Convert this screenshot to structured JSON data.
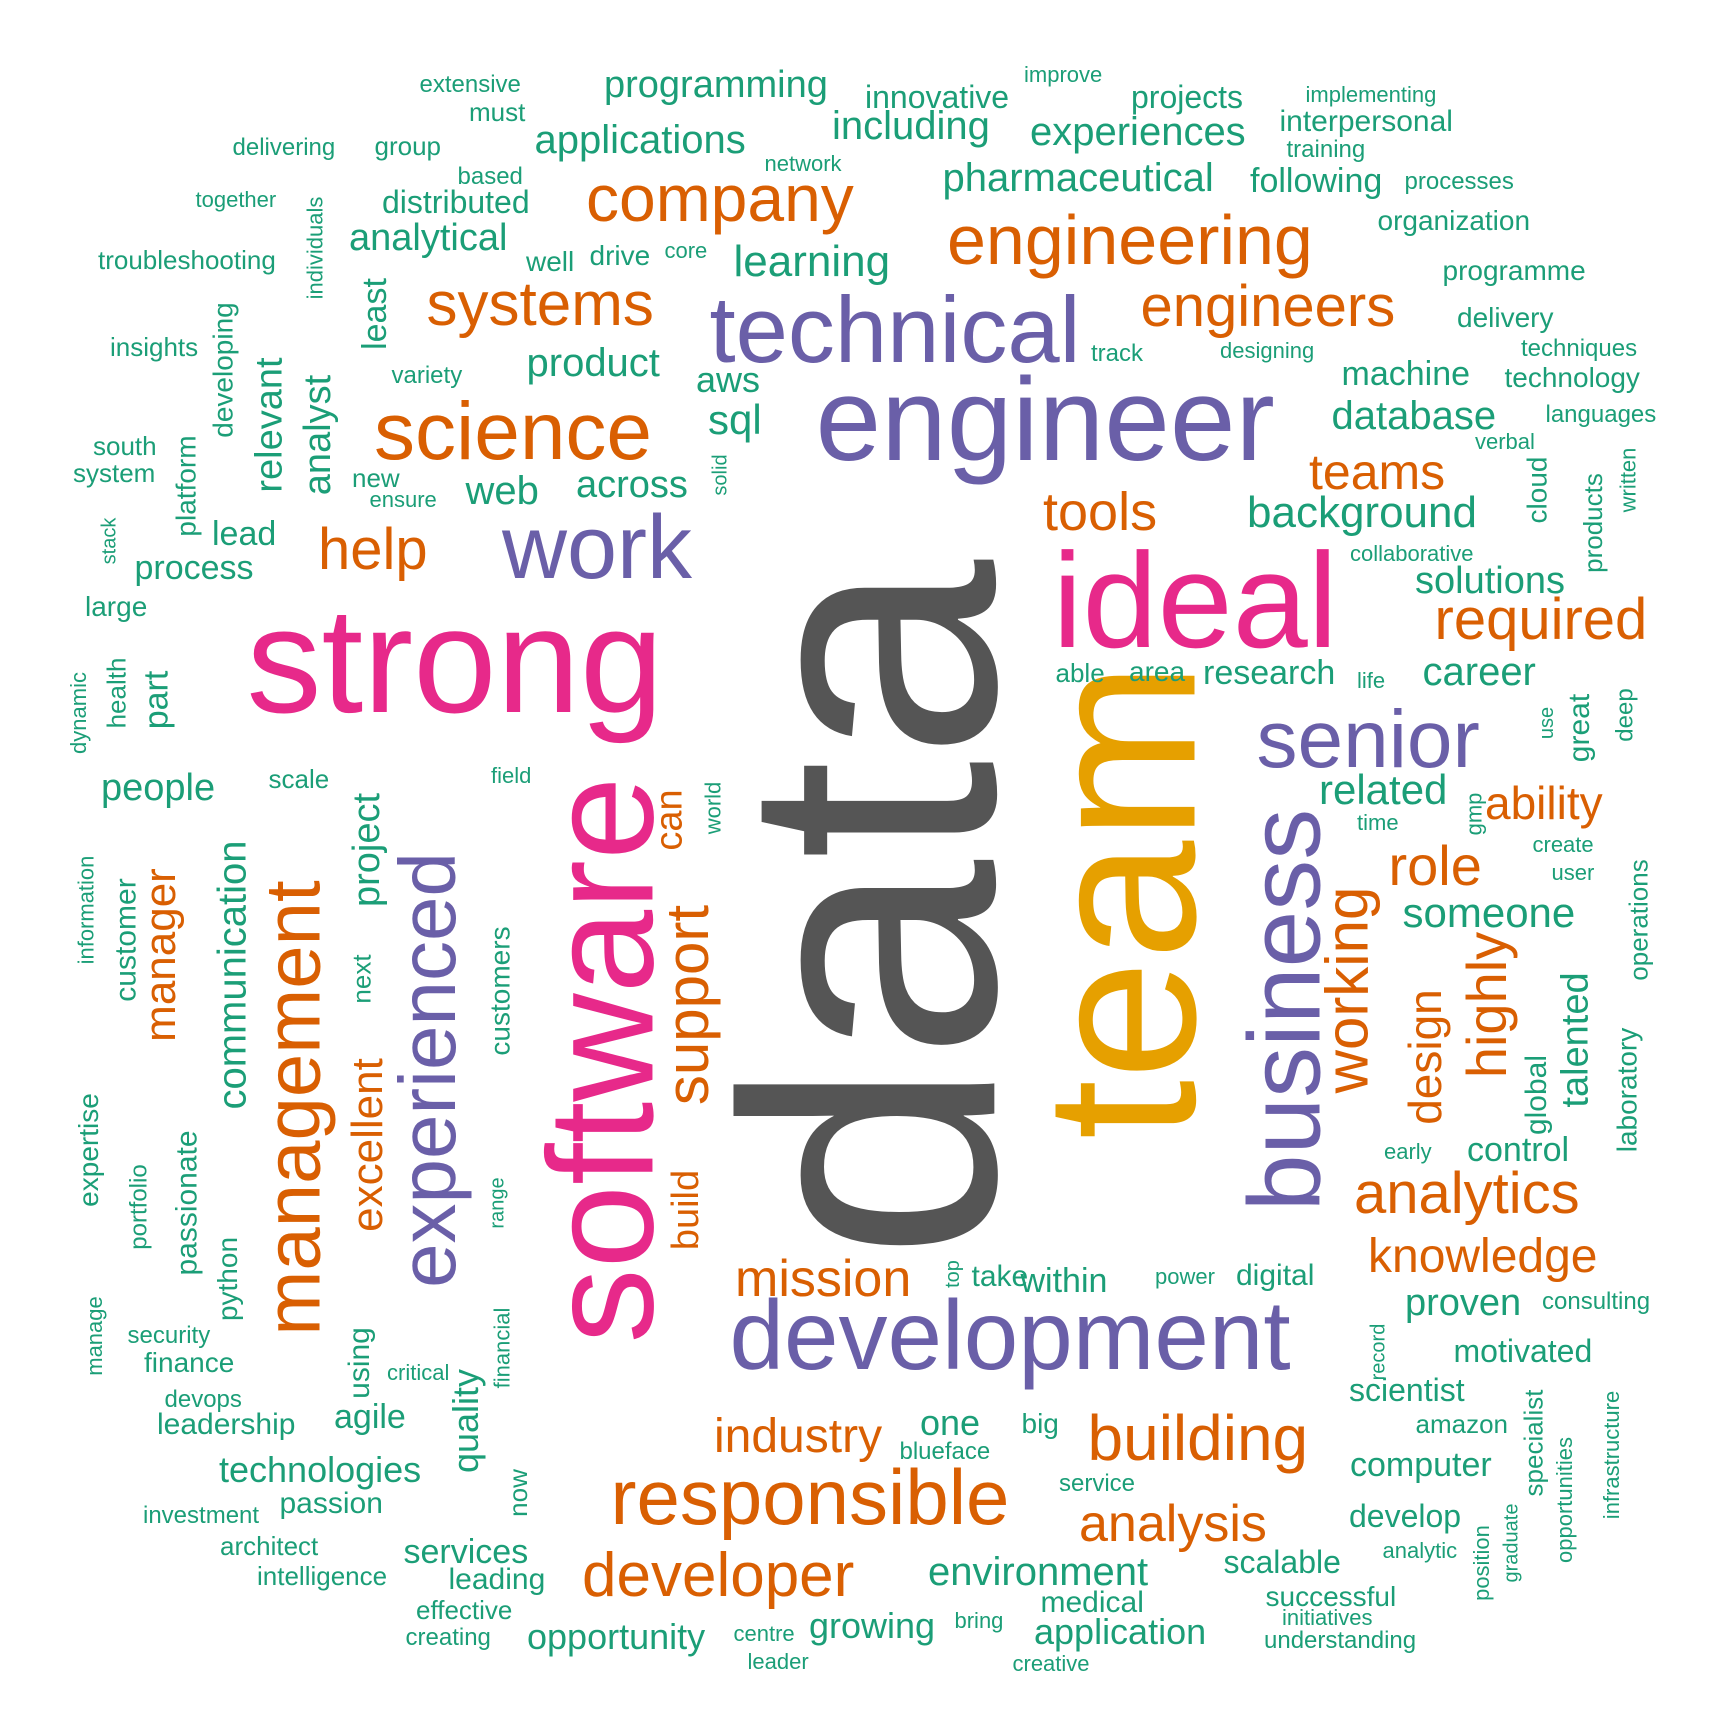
{
  "palette": {
    "dark": "#555555",
    "green": "#1b9e77",
    "orange": "#d95f02",
    "purple": "#6a5fa8",
    "magenta": "#e7298a",
    "gold": "#e6a000"
  },
  "words": [
    {
      "text": "data",
      "color": "dark"
    },
    {
      "text": "team",
      "color": "gold"
    },
    {
      "text": "strong",
      "color": "magenta"
    },
    {
      "text": "software",
      "color": "magenta"
    },
    {
      "text": "ideal",
      "color": "magenta"
    },
    {
      "text": "engineer",
      "color": "purple"
    },
    {
      "text": "technical",
      "color": "purple"
    },
    {
      "text": "development",
      "color": "purple"
    },
    {
      "text": "business",
      "color": "purple"
    },
    {
      "text": "senior",
      "color": "purple"
    },
    {
      "text": "work",
      "color": "purple"
    },
    {
      "text": "experienced",
      "color": "purple"
    },
    {
      "text": "science",
      "color": "orange"
    },
    {
      "text": "engineering",
      "color": "orange"
    },
    {
      "text": "company",
      "color": "orange"
    },
    {
      "text": "systems",
      "color": "orange"
    },
    {
      "text": "engineers",
      "color": "orange"
    },
    {
      "text": "management",
      "color": "orange"
    },
    {
      "text": "responsible",
      "color": "orange"
    },
    {
      "text": "building",
      "color": "orange"
    },
    {
      "text": "developer",
      "color": "orange"
    },
    {
      "text": "support",
      "color": "orange"
    },
    {
      "text": "working",
      "color": "orange"
    },
    {
      "text": "analytics",
      "color": "orange"
    },
    {
      "text": "required",
      "color": "orange"
    },
    {
      "text": "help",
      "color": "orange"
    },
    {
      "text": "tools",
      "color": "orange"
    },
    {
      "text": "teams",
      "color": "orange"
    },
    {
      "text": "role",
      "color": "orange"
    },
    {
      "text": "ability",
      "color": "orange"
    },
    {
      "text": "highly",
      "color": "orange"
    },
    {
      "text": "design",
      "color": "orange"
    },
    {
      "text": "knowledge",
      "color": "orange"
    },
    {
      "text": "mission",
      "color": "orange"
    },
    {
      "text": "industry",
      "color": "orange"
    },
    {
      "text": "analysis",
      "color": "orange"
    },
    {
      "text": "excellent",
      "color": "orange"
    },
    {
      "text": "manager",
      "color": "orange"
    },
    {
      "text": "build",
      "color": "orange"
    },
    {
      "text": "can",
      "color": "orange"
    },
    {
      "text": "related",
      "color": "green"
    },
    {
      "text": "someone",
      "color": "green"
    },
    {
      "text": "solutions",
      "color": "green"
    },
    {
      "text": "background",
      "color": "green"
    },
    {
      "text": "database",
      "color": "green"
    },
    {
      "text": "machine",
      "color": "green"
    },
    {
      "text": "career",
      "color": "green"
    },
    {
      "text": "research",
      "color": "green"
    },
    {
      "text": "area",
      "color": "green"
    },
    {
      "text": "able",
      "color": "green"
    },
    {
      "text": "programming",
      "color": "green"
    },
    {
      "text": "applications",
      "color": "green"
    },
    {
      "text": "innovative",
      "color": "green"
    },
    {
      "text": "including",
      "color": "green"
    },
    {
      "text": "projects",
      "color": "green"
    },
    {
      "text": "experiences",
      "color": "green"
    },
    {
      "text": "pharmaceutical",
      "color": "green"
    },
    {
      "text": "following",
      "color": "green"
    },
    {
      "text": "learning",
      "color": "green"
    },
    {
      "text": "product",
      "color": "green"
    },
    {
      "text": "aws",
      "color": "green"
    },
    {
      "text": "sql",
      "color": "green"
    },
    {
      "text": "across",
      "color": "green"
    },
    {
      "text": "web",
      "color": "green"
    },
    {
      "text": "analytical",
      "color": "green"
    },
    {
      "text": "distributed",
      "color": "green"
    },
    {
      "text": "people",
      "color": "green"
    },
    {
      "text": "communication",
      "color": "green"
    },
    {
      "text": "project",
      "color": "green"
    },
    {
      "text": "analyst",
      "color": "green"
    },
    {
      "text": "relevant",
      "color": "green"
    },
    {
      "text": "process",
      "color": "green"
    },
    {
      "text": "lead",
      "color": "green"
    },
    {
      "text": "proven",
      "color": "green"
    },
    {
      "text": "motivated",
      "color": "green"
    },
    {
      "text": "scientist",
      "color": "green"
    },
    {
      "text": "computer",
      "color": "green"
    },
    {
      "text": "develop",
      "color": "green"
    },
    {
      "text": "scalable",
      "color": "green"
    },
    {
      "text": "successful",
      "color": "green"
    },
    {
      "text": "environment",
      "color": "green"
    },
    {
      "text": "application",
      "color": "green"
    },
    {
      "text": "medical",
      "color": "green"
    },
    {
      "text": "growing",
      "color": "green"
    },
    {
      "text": "opportunity",
      "color": "green"
    },
    {
      "text": "services",
      "color": "green"
    },
    {
      "text": "leading",
      "color": "green"
    },
    {
      "text": "technologies",
      "color": "green"
    },
    {
      "text": "agile",
      "color": "green"
    },
    {
      "text": "leadership",
      "color": "green"
    },
    {
      "text": "quality",
      "color": "green"
    },
    {
      "text": "one",
      "color": "green"
    },
    {
      "text": "within",
      "color": "green"
    },
    {
      "text": "digital",
      "color": "green"
    },
    {
      "text": "take",
      "color": "green"
    },
    {
      "text": "control",
      "color": "green"
    },
    {
      "text": "talented",
      "color": "green"
    },
    {
      "text": "global",
      "color": "green"
    },
    {
      "text": "great",
      "color": "green"
    },
    {
      "text": "using",
      "color": "green"
    },
    {
      "text": "passion",
      "color": "green"
    },
    {
      "text": "passionate",
      "color": "green"
    },
    {
      "text": "customer",
      "color": "green"
    },
    {
      "text": "part",
      "color": "green"
    },
    {
      "text": "least",
      "color": "green"
    },
    {
      "text": "platform",
      "color": "green"
    },
    {
      "text": "developing",
      "color": "green"
    },
    {
      "text": "extensive",
      "color": "green"
    },
    {
      "text": "must",
      "color": "green"
    },
    {
      "text": "improve",
      "color": "green"
    },
    {
      "text": "implementing",
      "color": "green"
    },
    {
      "text": "interpersonal",
      "color": "green"
    },
    {
      "text": "training",
      "color": "green"
    },
    {
      "text": "delivering",
      "color": "green"
    },
    {
      "text": "group",
      "color": "green"
    },
    {
      "text": "network",
      "color": "green"
    },
    {
      "text": "based",
      "color": "green"
    },
    {
      "text": "processes",
      "color": "green"
    },
    {
      "text": "together",
      "color": "green"
    },
    {
      "text": "organization",
      "color": "green"
    },
    {
      "text": "troubleshooting",
      "color": "green"
    },
    {
      "text": "well",
      "color": "green"
    },
    {
      "text": "drive",
      "color": "green"
    },
    {
      "text": "core",
      "color": "green"
    },
    {
      "text": "programme",
      "color": "green"
    },
    {
      "text": "delivery",
      "color": "green"
    },
    {
      "text": "insights",
      "color": "green"
    },
    {
      "text": "variety",
      "color": "green"
    },
    {
      "text": "track",
      "color": "green"
    },
    {
      "text": "designing",
      "color": "green"
    },
    {
      "text": "techniques",
      "color": "green"
    },
    {
      "text": "technology",
      "color": "green"
    },
    {
      "text": "individuals",
      "color": "green"
    },
    {
      "text": "languages",
      "color": "green"
    },
    {
      "text": "verbal",
      "color": "green"
    },
    {
      "text": "south",
      "color": "green"
    },
    {
      "text": "system",
      "color": "green"
    },
    {
      "text": "new",
      "color": "green"
    },
    {
      "text": "ensure",
      "color": "green"
    },
    {
      "text": "solid",
      "color": "green"
    },
    {
      "text": "cloud",
      "color": "green"
    },
    {
      "text": "products",
      "color": "green"
    },
    {
      "text": "written",
      "color": "green"
    },
    {
      "text": "stack",
      "color": "green"
    },
    {
      "text": "collaborative",
      "color": "green"
    },
    {
      "text": "large",
      "color": "green"
    },
    {
      "text": "life",
      "color": "green"
    },
    {
      "text": "dynamic",
      "color": "green"
    },
    {
      "text": "health",
      "color": "green"
    },
    {
      "text": "use",
      "color": "green"
    },
    {
      "text": "deep",
      "color": "green"
    },
    {
      "text": "scale",
      "color": "green"
    },
    {
      "text": "field",
      "color": "green"
    },
    {
      "text": "world",
      "color": "green"
    },
    {
      "text": "time",
      "color": "green"
    },
    {
      "text": "gmp",
      "color": "green"
    },
    {
      "text": "create",
      "color": "green"
    },
    {
      "text": "user",
      "color": "green"
    },
    {
      "text": "information",
      "color": "green"
    },
    {
      "text": "operations",
      "color": "green"
    },
    {
      "text": "next",
      "color": "green"
    },
    {
      "text": "customers",
      "color": "green"
    },
    {
      "text": "laboratory",
      "color": "green"
    },
    {
      "text": "expertise",
      "color": "green"
    },
    {
      "text": "early",
      "color": "green"
    },
    {
      "text": "portfolio",
      "color": "green"
    },
    {
      "text": "range",
      "color": "green"
    },
    {
      "text": "python",
      "color": "green"
    },
    {
      "text": "top",
      "color": "green"
    },
    {
      "text": "power",
      "color": "green"
    },
    {
      "text": "consulting",
      "color": "green"
    },
    {
      "text": "record",
      "color": "green"
    },
    {
      "text": "manage",
      "color": "green"
    },
    {
      "text": "security",
      "color": "green"
    },
    {
      "text": "finance",
      "color": "green"
    },
    {
      "text": "financial",
      "color": "green"
    },
    {
      "text": "critical",
      "color": "green"
    },
    {
      "text": "devops",
      "color": "green"
    },
    {
      "text": "big",
      "color": "green"
    },
    {
      "text": "blueface",
      "color": "green"
    },
    {
      "text": "amazon",
      "color": "green"
    },
    {
      "text": "specialist",
      "color": "green"
    },
    {
      "text": "infrastructure",
      "color": "green"
    },
    {
      "text": "service",
      "color": "green"
    },
    {
      "text": "opportunities",
      "color": "green"
    },
    {
      "text": "now",
      "color": "green"
    },
    {
      "text": "investment",
      "color": "green"
    },
    {
      "text": "architect",
      "color": "green"
    },
    {
      "text": "intelligence",
      "color": "green"
    },
    {
      "text": "graduate",
      "color": "green"
    },
    {
      "text": "position",
      "color": "green"
    },
    {
      "text": "analytic",
      "color": "green"
    },
    {
      "text": "effective",
      "color": "green"
    },
    {
      "text": "creating",
      "color": "green"
    },
    {
      "text": "centre",
      "color": "green"
    },
    {
      "text": "leader",
      "color": "green"
    },
    {
      "text": "bring",
      "color": "green"
    },
    {
      "text": "creative",
      "color": "green"
    },
    {
      "text": "initiatives",
      "color": "green"
    },
    {
      "text": "understanding",
      "color": "green"
    }
  ]
}
